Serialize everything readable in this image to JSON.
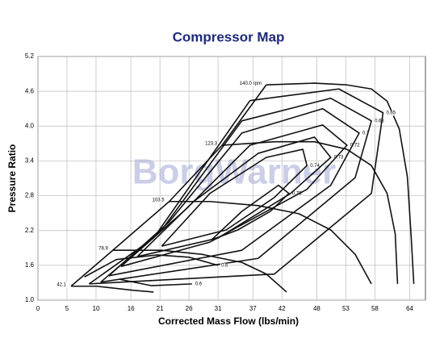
{
  "chart_data": {
    "type": "line",
    "title": "Compressor Map",
    "xlabel": "Corrected Mass Flow (lbs/min)",
    "ylabel": "Pressure Ratio",
    "watermark": "BorgWarner",
    "xlim": [
      0,
      66.7
    ],
    "ylim": [
      1.0,
      5.2
    ],
    "xticks": [
      0,
      5,
      10,
      16,
      21,
      26,
      31,
      37,
      42,
      48,
      53,
      58,
      64
    ],
    "yticks": [
      {
        "value": 1,
        "label": "1.0"
      },
      1.6,
      2.2,
      2.8,
      3.4,
      {
        "value": 4,
        "label": "4.0"
      },
      4.6,
      5.2
    ],
    "grid": true,
    "series": [
      {
        "name": "140.0 rpm",
        "x": [
          39.3,
          47.6,
          53.2,
          57.4,
          60.1,
          62.2,
          63.6,
          64.3,
          64.7
        ],
        "y": [
          4.71,
          4.74,
          4.71,
          4.64,
          4.43,
          3.95,
          3.12,
          2.0,
          1.28
        ]
      },
      {
        "name": "123.3",
        "x": [
          31.7,
          40.7,
          47.6,
          53.2,
          57.4,
          60.1,
          61.5,
          61.9
        ],
        "y": [
          3.67,
          3.73,
          3.73,
          3.6,
          3.32,
          2.84,
          2.14,
          1.28
        ]
      },
      {
        "name": "103.5",
        "x": [
          22.6,
          29.6,
          37.9,
          44.9,
          50.4,
          54.6,
          57.4
        ],
        "y": [
          2.7,
          2.7,
          2.63,
          2.49,
          2.21,
          1.79,
          1.28
        ]
      },
      {
        "name": "78.9",
        "x": [
          12.9,
          21.3,
          28.2,
          35.1,
          39.3,
          42.8
        ],
        "y": [
          1.86,
          1.86,
          1.79,
          1.65,
          1.45,
          1.14
        ]
      },
      {
        "name": "42.1",
        "x": [
          5.7,
          10.1,
          16.4,
          19.9
        ],
        "y": [
          1.24,
          1.24,
          1.17,
          1.14
        ]
      },
      {
        "x": [
          5.7,
          12.9,
          22.6,
          31.7,
          39.3
        ],
        "y": [
          1.24,
          1.86,
          2.7,
          3.67,
          4.71
        ]
      },
      {
        "name": "0.75",
        "x": [
          29.9,
          35.1,
          41.4,
          43.2,
          40.0,
          34.4,
          29.9
        ],
        "y": [
          2.04,
          2.53,
          2.98,
          2.84,
          2.53,
          2.21,
          2.04
        ]
      },
      {
        "name": "0.74",
        "x": [
          21.3,
          29.6,
          39.3,
          45.6,
          46.3,
          40.7,
          32.4,
          21.3
        ],
        "y": [
          1.93,
          2.84,
          3.46,
          3.6,
          3.32,
          2.77,
          2.21,
          1.93
        ]
      },
      {
        "name": "0.73",
        "x": [
          17.1,
          26.8,
          37.9,
          47.6,
          50.4,
          43.5,
          31.0,
          17.1
        ],
        "y": [
          1.75,
          2.7,
          3.53,
          3.81,
          3.46,
          2.84,
          2.07,
          1.75
        ]
      },
      {
        "name": "0.72",
        "x": [
          14.3,
          25.4,
          36.5,
          49.0,
          53.2,
          46.3,
          29.6,
          14.3
        ],
        "y": [
          1.58,
          2.56,
          3.67,
          4.02,
          3.67,
          2.91,
          2.0,
          1.58
        ]
      },
      {
        "name": "0.7",
        "x": [
          12.2,
          22.6,
          35.1,
          49.0,
          55.3,
          50.4,
          35.1,
          12.2
        ],
        "y": [
          1.42,
          2.35,
          3.88,
          4.3,
          3.88,
          2.98,
          1.86,
          1.42
        ]
      },
      {
        "name": "0.68",
        "x": [
          10.8,
          21.3,
          35.1,
          50.4,
          57.4,
          54.6,
          37.9,
          10.8
        ],
        "y": [
          1.31,
          2.21,
          4.09,
          4.48,
          4.09,
          3.11,
          1.72,
          1.31
        ]
      },
      {
        "name": "0.65",
        "x": [
          8.8,
          19.9,
          36.5,
          51.8,
          59.4,
          57.4,
          40.7,
          8.8
        ],
        "y": [
          1.28,
          2.07,
          4.44,
          4.64,
          4.23,
          2.84,
          1.45,
          1.28
        ]
      },
      {
        "name": "0.6",
        "x": [
          8.0,
          13.5,
          20.5,
          26.0,
          31.0
        ],
        "y": [
          1.4,
          1.7,
          1.78,
          1.74,
          1.6
        ]
      },
      {
        "name": "0.6",
        "x": [
          14.0,
          19.5,
          26.5
        ],
        "y": [
          1.36,
          1.25,
          1.28
        ]
      }
    ]
  }
}
